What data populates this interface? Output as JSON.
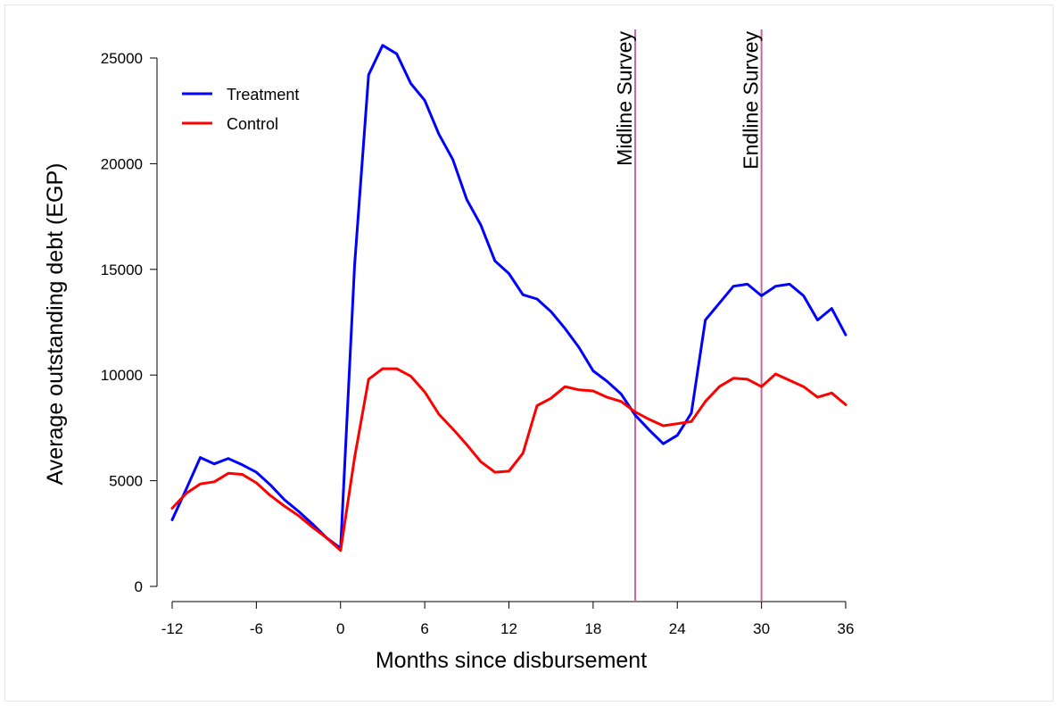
{
  "chart_data": {
    "type": "line",
    "title": "",
    "xlabel": "Months since disbursement",
    "ylabel": "Average outstanding debt (EGP)",
    "xlim": [
      -12,
      36
    ],
    "ylim": [
      0,
      25000
    ],
    "xticks": [
      -12,
      -6,
      0,
      6,
      12,
      18,
      24,
      30,
      36
    ],
    "yticks": [
      0,
      5000,
      10000,
      15000,
      20000,
      25000
    ],
    "grid": false,
    "legend_position": "top-left",
    "x": [
      -12,
      -11,
      -10,
      -9,
      -8,
      -7,
      -6,
      -5,
      -4,
      -3,
      -2,
      -1,
      0,
      1,
      2,
      3,
      4,
      5,
      6,
      7,
      8,
      9,
      10,
      11,
      12,
      13,
      14,
      15,
      16,
      17,
      18,
      19,
      20,
      21,
      22,
      23,
      24,
      25,
      26,
      27,
      28,
      29,
      30,
      31,
      32,
      33,
      34,
      35,
      36
    ],
    "series": [
      {
        "name": "Treatment",
        "color": "#0000ff",
        "values": [
          3150,
          4600,
          6100,
          5800,
          6050,
          5750,
          5400,
          4800,
          4100,
          3550,
          2950,
          2300,
          1800,
          15200,
          24200,
          25600,
          25200,
          23800,
          23000,
          21400,
          20200,
          18300,
          17100,
          15400,
          14800,
          13800,
          13600,
          13000,
          12200,
          11300,
          10200,
          9700,
          9100,
          8100,
          7400,
          6750,
          7150,
          8200,
          12600,
          13400,
          14200,
          14300,
          13750,
          14200,
          14300,
          13750,
          12600,
          13150,
          11900
        ]
      },
      {
        "name": "Control",
        "color": "#ff0000",
        "values": [
          3700,
          4400,
          4850,
          4950,
          5350,
          5300,
          4900,
          4300,
          3800,
          3350,
          2800,
          2300,
          1700,
          6100,
          9800,
          10300,
          10300,
          9950,
          9200,
          8150,
          7450,
          6700,
          5900,
          5400,
          5450,
          6300,
          8550,
          8900,
          9450,
          9300,
          9250,
          8950,
          8750,
          8250,
          7900,
          7600,
          7700,
          7800,
          8750,
          9450,
          9850,
          9800,
          9450,
          10050,
          9750,
          9450,
          8950,
          9150,
          8600
        ]
      }
    ],
    "vertical_lines": [
      {
        "x": 21,
        "label": "Midline Survey",
        "color": "#cc6699"
      },
      {
        "x": 30,
        "label": "Endline Survey",
        "color": "#cc6699"
      }
    ]
  }
}
